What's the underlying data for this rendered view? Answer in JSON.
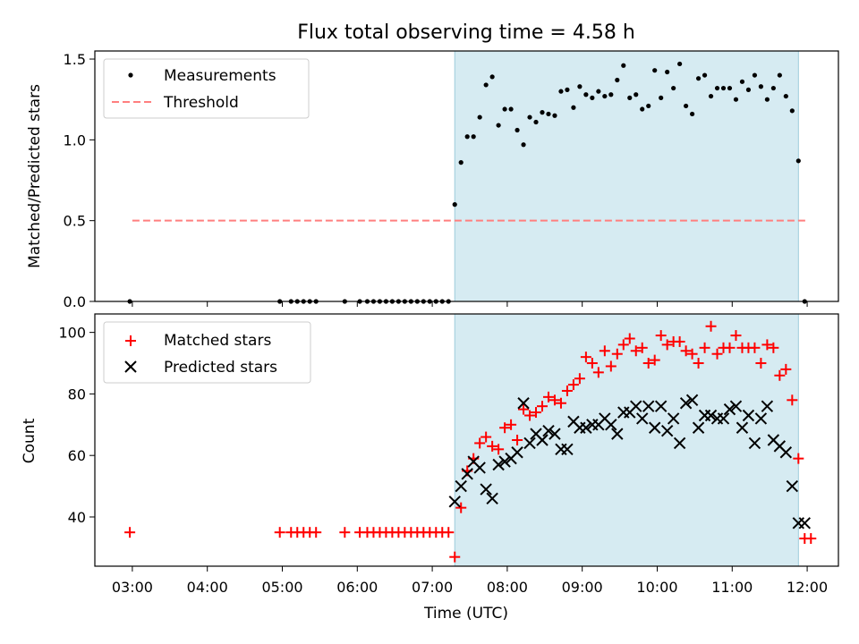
{
  "figure": {
    "title": "Flux total observing time = 4.58 h",
    "xlabel": "Time (UTC)",
    "x_ticks": [
      "03:00",
      "04:00",
      "05:00",
      "06:00",
      "07:00",
      "08:00",
      "09:00",
      "10:00",
      "11:00",
      "12:00"
    ]
  },
  "colors": {
    "shade": "#add8e6",
    "measurement": "#000000",
    "threshold": "#ff7f7f",
    "matched": "#ff0000",
    "predicted": "#000000"
  },
  "chart_data": [
    {
      "type": "scatter",
      "ylabel": "Matched/Predicted stars",
      "xlim": [
        "02:30",
        "12:25"
      ],
      "ylim": [
        0,
        1.55
      ],
      "y_ticks": [
        "0.0",
        "0.5",
        "1.0",
        "1.5"
      ],
      "y_tick_values": [
        0,
        0.5,
        1.0,
        1.5
      ],
      "legend_position": "top-left",
      "shaded_region": [
        "07:18",
        "11:53"
      ],
      "series": [
        {
          "name": "Measurements",
          "kind": "scatter",
          "x": [
            "02:58",
            "04:58",
            "05:07",
            "05:12",
            "05:17",
            "05:22",
            "05:27",
            "05:50",
            "06:02",
            "06:08",
            "06:13",
            "06:18",
            "06:23",
            "06:28",
            "06:33",
            "06:38",
            "06:43",
            "06:48",
            "06:53",
            "06:58",
            "07:03",
            "07:08",
            "07:13",
            "07:18",
            "07:23",
            "07:28",
            "07:33",
            "07:38",
            "07:43",
            "07:48",
            "07:53",
            "07:58",
            "08:03",
            "08:08",
            "08:13",
            "08:18",
            "08:23",
            "08:28",
            "08:33",
            "08:38",
            "08:43",
            "08:48",
            "08:53",
            "08:58",
            "09:03",
            "09:08",
            "09:13",
            "09:18",
            "09:23",
            "09:28",
            "09:33",
            "09:38",
            "09:43",
            "09:48",
            "09:53",
            "09:58",
            "10:03",
            "10:08",
            "10:13",
            "10:18",
            "10:23",
            "10:28",
            "10:33",
            "10:38",
            "10:43",
            "10:48",
            "10:53",
            "10:58",
            "11:03",
            "11:08",
            "11:13",
            "11:18",
            "11:23",
            "11:28",
            "11:33",
            "11:38",
            "11:43",
            "11:48",
            "11:53",
            "11:58"
          ],
          "y": [
            0,
            0,
            0,
            0,
            0,
            0,
            0,
            0,
            0,
            0,
            0,
            0,
            0,
            0,
            0,
            0,
            0,
            0,
            0,
            0,
            0,
            0,
            0,
            0.6,
            0.86,
            1.02,
            1.02,
            1.14,
            1.34,
            1.39,
            1.09,
            1.19,
            1.19,
            1.06,
            0.97,
            1.14,
            1.11,
            1.17,
            1.16,
            1.15,
            1.3,
            1.31,
            1.2,
            1.33,
            1.28,
            1.26,
            1.3,
            1.27,
            1.28,
            1.37,
            1.46,
            1.26,
            1.28,
            1.19,
            1.21,
            1.43,
            1.26,
            1.42,
            1.32,
            1.47,
            1.21,
            1.16,
            1.38,
            1.4,
            1.27,
            1.32,
            1.32,
            1.32,
            1.25,
            1.36,
            1.31,
            1.4,
            1.33,
            1.25,
            1.32,
            1.4,
            1.27,
            1.18,
            0.87,
            0
          ]
        },
        {
          "name": "Threshold",
          "kind": "dashed-line",
          "x": [
            "03:00",
            "12:00"
          ],
          "y": [
            0.5,
            0.5
          ]
        }
      ]
    },
    {
      "type": "scatter",
      "ylabel": "Count",
      "xlim": [
        "02:30",
        "12:25"
      ],
      "ylim": [
        24,
        106
      ],
      "y_ticks": [
        "40",
        "60",
        "80",
        "100"
      ],
      "y_tick_values": [
        40,
        60,
        80,
        100
      ],
      "legend_position": "top-left",
      "shaded_region": [
        "07:18",
        "11:53"
      ],
      "series": [
        {
          "name": "Matched stars",
          "kind": "plus",
          "x": [
            "02:58",
            "04:58",
            "05:07",
            "05:12",
            "05:17",
            "05:22",
            "05:27",
            "05:50",
            "06:02",
            "06:08",
            "06:13",
            "06:18",
            "06:23",
            "06:28",
            "06:33",
            "06:38",
            "06:43",
            "06:48",
            "06:53",
            "06:58",
            "07:03",
            "07:08",
            "07:13",
            "07:18",
            "07:23",
            "07:28",
            "07:33",
            "07:38",
            "07:43",
            "07:48",
            "07:53",
            "07:58",
            "08:03",
            "08:08",
            "08:13",
            "08:18",
            "08:23",
            "08:28",
            "08:33",
            "08:38",
            "08:43",
            "08:48",
            "08:53",
            "08:58",
            "09:03",
            "09:08",
            "09:13",
            "09:18",
            "09:23",
            "09:28",
            "09:33",
            "09:38",
            "09:43",
            "09:48",
            "09:53",
            "09:58",
            "10:03",
            "10:08",
            "10:13",
            "10:18",
            "10:23",
            "10:28",
            "10:33",
            "10:38",
            "10:43",
            "10:48",
            "10:53",
            "10:58",
            "11:03",
            "11:08",
            "11:13",
            "11:18",
            "11:23",
            "11:28",
            "11:33",
            "11:38",
            "11:43",
            "11:48",
            "11:53",
            "11:58",
            "12:03"
          ],
          "y": [
            35,
            35,
            35,
            35,
            35,
            35,
            35,
            35,
            35,
            35,
            35,
            35,
            35,
            35,
            35,
            35,
            35,
            35,
            35,
            35,
            35,
            35,
            35,
            27,
            43,
            55,
            59,
            64,
            66,
            63,
            62,
            69,
            70,
            65,
            75,
            73,
            74,
            76,
            79,
            78,
            77,
            81,
            83,
            85,
            92,
            90,
            87,
            94,
            89,
            93,
            96,
            98,
            94,
            95,
            90,
            91,
            99,
            96,
            97,
            97,
            94,
            93,
            90,
            95,
            102,
            93,
            95,
            95,
            99,
            95,
            95,
            95,
            90,
            96,
            95,
            86,
            88,
            78,
            59,
            33,
            33
          ]
        },
        {
          "name": "Predicted stars",
          "kind": "x",
          "x": [
            "07:18",
            "07:23",
            "07:28",
            "07:33",
            "07:38",
            "07:43",
            "07:48",
            "07:53",
            "07:58",
            "08:03",
            "08:08",
            "08:13",
            "08:18",
            "08:23",
            "08:28",
            "08:33",
            "08:38",
            "08:43",
            "08:48",
            "08:53",
            "08:58",
            "09:03",
            "09:08",
            "09:13",
            "09:18",
            "09:23",
            "09:28",
            "09:33",
            "09:38",
            "09:43",
            "09:48",
            "09:53",
            "09:58",
            "10:03",
            "10:08",
            "10:13",
            "10:18",
            "10:23",
            "10:28",
            "10:33",
            "10:38",
            "10:43",
            "10:48",
            "10:53",
            "10:58",
            "11:03",
            "11:08",
            "11:13",
            "11:18",
            "11:23",
            "11:28",
            "11:33",
            "11:38",
            "11:43",
            "11:48",
            "11:53",
            "11:58"
          ],
          "y": [
            45,
            50,
            54,
            58,
            56,
            49,
            46,
            57,
            58,
            59,
            61,
            77,
            64,
            67,
            65,
            68,
            67,
            62,
            62,
            71,
            69,
            69,
            70,
            70,
            72,
            70,
            67,
            74,
            74,
            76,
            72,
            76,
            69,
            76,
            68,
            72,
            64,
            77,
            78,
            69,
            73,
            73,
            72,
            72,
            75,
            76,
            69,
            73,
            64,
            72,
            76,
            65,
            63,
            61,
            50,
            38,
            38
          ]
        }
      ]
    }
  ]
}
